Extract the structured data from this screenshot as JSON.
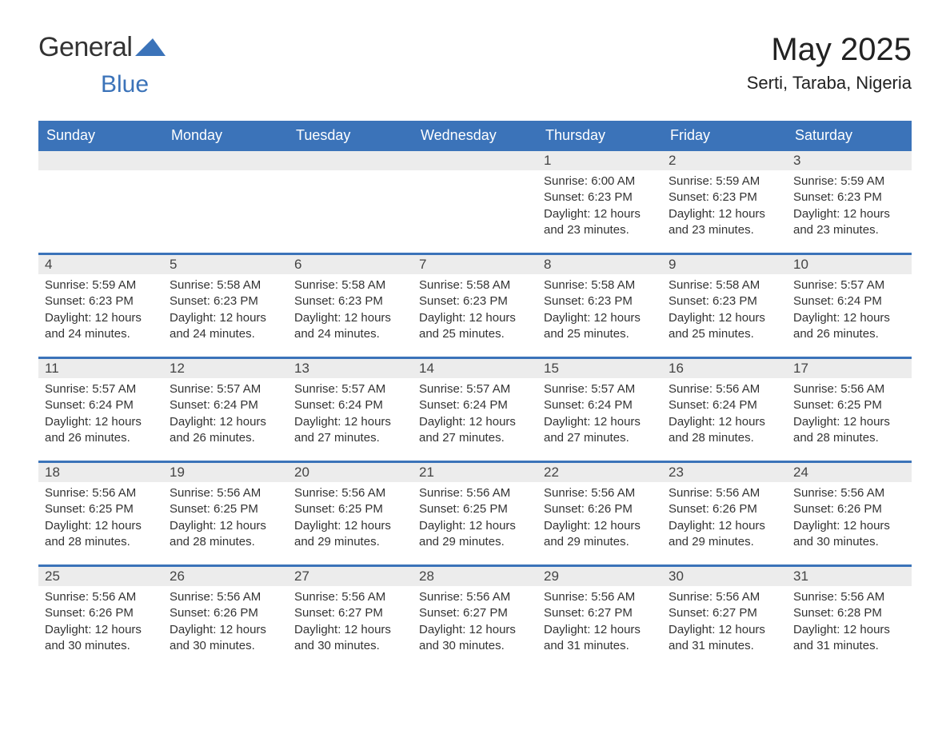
{
  "logo": {
    "text1": "General",
    "text2": "Blue"
  },
  "header": {
    "month_title": "May 2025",
    "location": "Serti, Taraba, Nigeria"
  },
  "colors": {
    "brand_blue": "#3b73b9",
    "header_bg": "#3b73b9",
    "header_text": "#ffffff",
    "daynum_bg": "#ececec",
    "body_text": "#333333",
    "page_bg": "#ffffff"
  },
  "calendar": {
    "day_names": [
      "Sunday",
      "Monday",
      "Tuesday",
      "Wednesday",
      "Thursday",
      "Friday",
      "Saturday"
    ],
    "weeks": [
      [
        null,
        null,
        null,
        null,
        {
          "num": "1",
          "sunrise": "Sunrise: 6:00 AM",
          "sunset": "Sunset: 6:23 PM",
          "daylight": "Daylight: 12 hours and 23 minutes."
        },
        {
          "num": "2",
          "sunrise": "Sunrise: 5:59 AM",
          "sunset": "Sunset: 6:23 PM",
          "daylight": "Daylight: 12 hours and 23 minutes."
        },
        {
          "num": "3",
          "sunrise": "Sunrise: 5:59 AM",
          "sunset": "Sunset: 6:23 PM",
          "daylight": "Daylight: 12 hours and 23 minutes."
        }
      ],
      [
        {
          "num": "4",
          "sunrise": "Sunrise: 5:59 AM",
          "sunset": "Sunset: 6:23 PM",
          "daylight": "Daylight: 12 hours and 24 minutes."
        },
        {
          "num": "5",
          "sunrise": "Sunrise: 5:58 AM",
          "sunset": "Sunset: 6:23 PM",
          "daylight": "Daylight: 12 hours and 24 minutes."
        },
        {
          "num": "6",
          "sunrise": "Sunrise: 5:58 AM",
          "sunset": "Sunset: 6:23 PM",
          "daylight": "Daylight: 12 hours and 24 minutes."
        },
        {
          "num": "7",
          "sunrise": "Sunrise: 5:58 AM",
          "sunset": "Sunset: 6:23 PM",
          "daylight": "Daylight: 12 hours and 25 minutes."
        },
        {
          "num": "8",
          "sunrise": "Sunrise: 5:58 AM",
          "sunset": "Sunset: 6:23 PM",
          "daylight": "Daylight: 12 hours and 25 minutes."
        },
        {
          "num": "9",
          "sunrise": "Sunrise: 5:58 AM",
          "sunset": "Sunset: 6:23 PM",
          "daylight": "Daylight: 12 hours and 25 minutes."
        },
        {
          "num": "10",
          "sunrise": "Sunrise: 5:57 AM",
          "sunset": "Sunset: 6:24 PM",
          "daylight": "Daylight: 12 hours and 26 minutes."
        }
      ],
      [
        {
          "num": "11",
          "sunrise": "Sunrise: 5:57 AM",
          "sunset": "Sunset: 6:24 PM",
          "daylight": "Daylight: 12 hours and 26 minutes."
        },
        {
          "num": "12",
          "sunrise": "Sunrise: 5:57 AM",
          "sunset": "Sunset: 6:24 PM",
          "daylight": "Daylight: 12 hours and 26 minutes."
        },
        {
          "num": "13",
          "sunrise": "Sunrise: 5:57 AM",
          "sunset": "Sunset: 6:24 PM",
          "daylight": "Daylight: 12 hours and 27 minutes."
        },
        {
          "num": "14",
          "sunrise": "Sunrise: 5:57 AM",
          "sunset": "Sunset: 6:24 PM",
          "daylight": "Daylight: 12 hours and 27 minutes."
        },
        {
          "num": "15",
          "sunrise": "Sunrise: 5:57 AM",
          "sunset": "Sunset: 6:24 PM",
          "daylight": "Daylight: 12 hours and 27 minutes."
        },
        {
          "num": "16",
          "sunrise": "Sunrise: 5:56 AM",
          "sunset": "Sunset: 6:24 PM",
          "daylight": "Daylight: 12 hours and 28 minutes."
        },
        {
          "num": "17",
          "sunrise": "Sunrise: 5:56 AM",
          "sunset": "Sunset: 6:25 PM",
          "daylight": "Daylight: 12 hours and 28 minutes."
        }
      ],
      [
        {
          "num": "18",
          "sunrise": "Sunrise: 5:56 AM",
          "sunset": "Sunset: 6:25 PM",
          "daylight": "Daylight: 12 hours and 28 minutes."
        },
        {
          "num": "19",
          "sunrise": "Sunrise: 5:56 AM",
          "sunset": "Sunset: 6:25 PM",
          "daylight": "Daylight: 12 hours and 28 minutes."
        },
        {
          "num": "20",
          "sunrise": "Sunrise: 5:56 AM",
          "sunset": "Sunset: 6:25 PM",
          "daylight": "Daylight: 12 hours and 29 minutes."
        },
        {
          "num": "21",
          "sunrise": "Sunrise: 5:56 AM",
          "sunset": "Sunset: 6:25 PM",
          "daylight": "Daylight: 12 hours and 29 minutes."
        },
        {
          "num": "22",
          "sunrise": "Sunrise: 5:56 AM",
          "sunset": "Sunset: 6:26 PM",
          "daylight": "Daylight: 12 hours and 29 minutes."
        },
        {
          "num": "23",
          "sunrise": "Sunrise: 5:56 AM",
          "sunset": "Sunset: 6:26 PM",
          "daylight": "Daylight: 12 hours and 29 minutes."
        },
        {
          "num": "24",
          "sunrise": "Sunrise: 5:56 AM",
          "sunset": "Sunset: 6:26 PM",
          "daylight": "Daylight: 12 hours and 30 minutes."
        }
      ],
      [
        {
          "num": "25",
          "sunrise": "Sunrise: 5:56 AM",
          "sunset": "Sunset: 6:26 PM",
          "daylight": "Daylight: 12 hours and 30 minutes."
        },
        {
          "num": "26",
          "sunrise": "Sunrise: 5:56 AM",
          "sunset": "Sunset: 6:26 PM",
          "daylight": "Daylight: 12 hours and 30 minutes."
        },
        {
          "num": "27",
          "sunrise": "Sunrise: 5:56 AM",
          "sunset": "Sunset: 6:27 PM",
          "daylight": "Daylight: 12 hours and 30 minutes."
        },
        {
          "num": "28",
          "sunrise": "Sunrise: 5:56 AM",
          "sunset": "Sunset: 6:27 PM",
          "daylight": "Daylight: 12 hours and 30 minutes."
        },
        {
          "num": "29",
          "sunrise": "Sunrise: 5:56 AM",
          "sunset": "Sunset: 6:27 PM",
          "daylight": "Daylight: 12 hours and 31 minutes."
        },
        {
          "num": "30",
          "sunrise": "Sunrise: 5:56 AM",
          "sunset": "Sunset: 6:27 PM",
          "daylight": "Daylight: 12 hours and 31 minutes."
        },
        {
          "num": "31",
          "sunrise": "Sunrise: 5:56 AM",
          "sunset": "Sunset: 6:28 PM",
          "daylight": "Daylight: 12 hours and 31 minutes."
        }
      ]
    ]
  }
}
